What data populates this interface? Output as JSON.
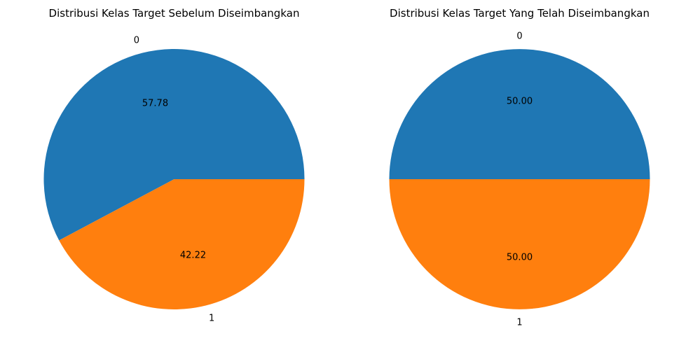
{
  "chart_data": [
    {
      "type": "pie",
      "title": "Distribusi Kelas Target Sebelum Diseimbangkan",
      "labels": [
        "0",
        "1"
      ],
      "values": [
        57.78,
        42.22
      ],
      "value_labels": [
        "57.78",
        "42.22"
      ],
      "colors": [
        "#1f77b4",
        "#ff7f0e"
      ],
      "start_angle_deg": 0,
      "direction": "counterclockwise"
    },
    {
      "type": "pie",
      "title": "Distribusi Kelas Target Yang Telah Diseimbangkan",
      "labels": [
        "0",
        "1"
      ],
      "values": [
        50.0,
        50.0
      ],
      "value_labels": [
        "50.00",
        "50.00"
      ],
      "colors": [
        "#1f77b4",
        "#ff7f0e"
      ],
      "start_angle_deg": 0,
      "direction": "counterclockwise"
    }
  ]
}
